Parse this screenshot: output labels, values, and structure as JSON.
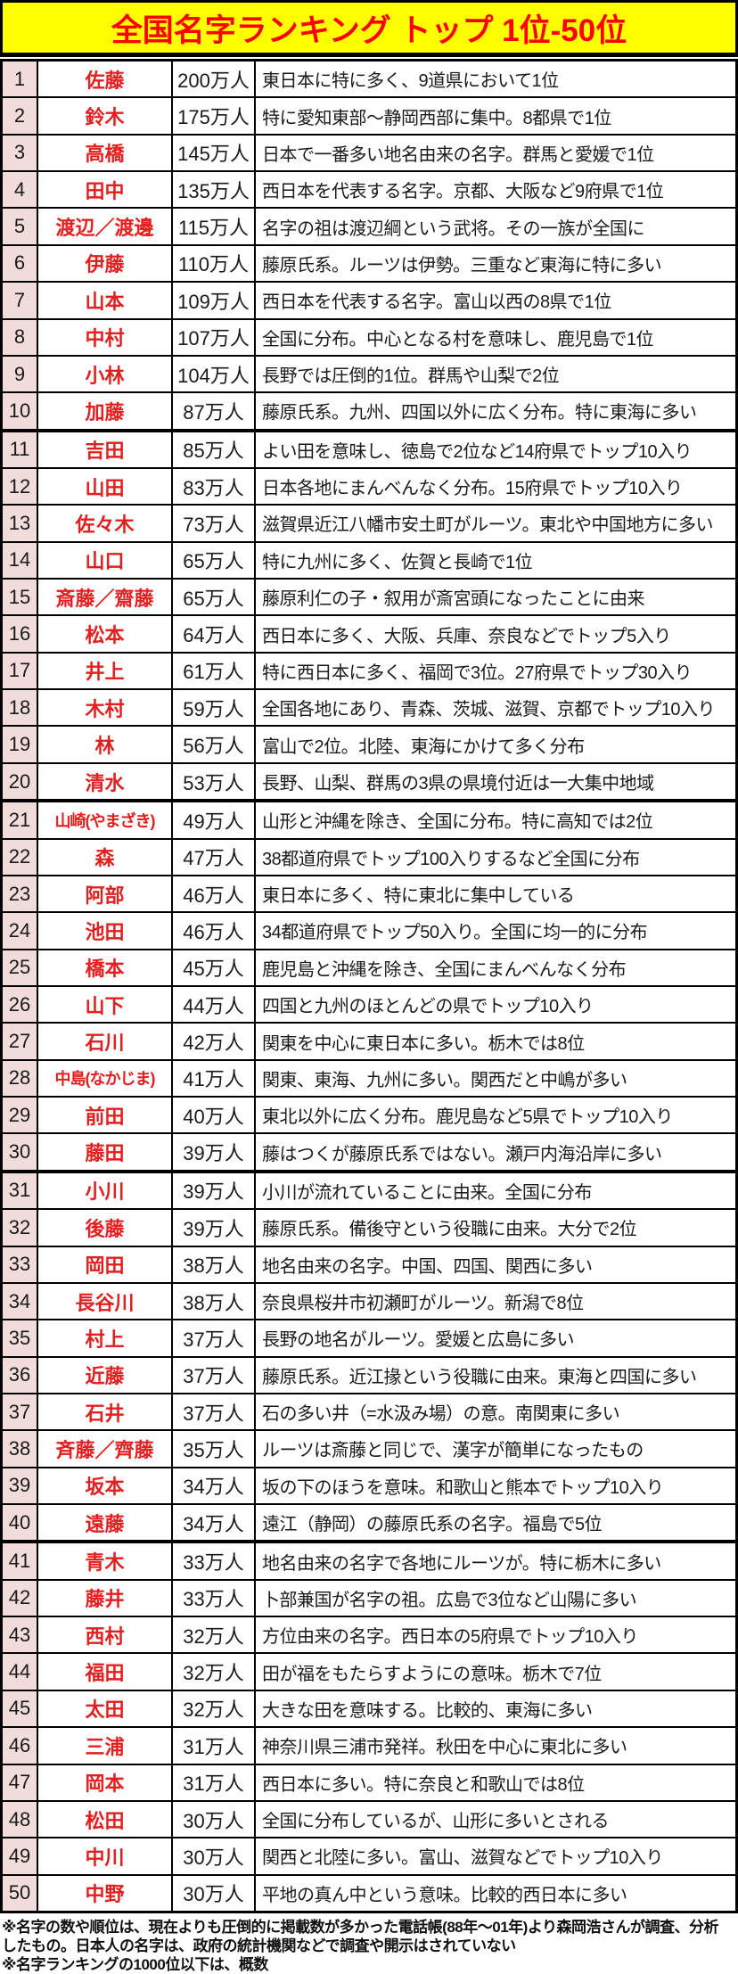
{
  "header": {
    "title": "全国名字ランキング トップ 1位-50位"
  },
  "colors": {
    "header_bg": "#ffff00",
    "header_text": "#ff0000",
    "rank_column_bg": "#f2dcdb",
    "surname_text": "#e31f1f",
    "border": "#000000"
  },
  "chart_data": {
    "type": "table",
    "title": "全国名字ランキング トップ 1位-50位",
    "columns": [
      "rank",
      "surname",
      "population",
      "description"
    ],
    "rows": [
      [
        1,
        "佐藤",
        "200万人",
        "東日本に特に多く、9道県において1位"
      ],
      [
        2,
        "鈴木",
        "175万人",
        "特に愛知東部～静岡西部に集中。8都県で1位"
      ],
      [
        3,
        "高橋",
        "145万人",
        "日本で一番多い地名由来の名字。群馬と愛媛で1位"
      ],
      [
        4,
        "田中",
        "135万人",
        "西日本を代表する名字。京都、大阪など9府県で1位"
      ],
      [
        5,
        "渡辺／渡邊",
        "115万人",
        "名字の祖は渡辺綱という武将。その一族が全国に"
      ],
      [
        6,
        "伊藤",
        "110万人",
        "藤原氏系。ルーツは伊勢。三重など東海に特に多い"
      ],
      [
        7,
        "山本",
        "109万人",
        "西日本を代表する名字。富山以西の8県で1位"
      ],
      [
        8,
        "中村",
        "107万人",
        "全国に分布。中心となる村を意味し、鹿児島で1位"
      ],
      [
        9,
        "小林",
        "104万人",
        "長野では圧倒的1位。群馬や山梨で2位"
      ],
      [
        10,
        "加藤",
        "87万人",
        "藤原氏系。九州、四国以外に広く分布。特に東海に多い"
      ],
      [
        11,
        "吉田",
        "85万人",
        "よい田を意味し、徳島で2位など14府県でトップ10入り"
      ],
      [
        12,
        "山田",
        "83万人",
        "日本各地にまんべんなく分布。15府県でトップ10入り"
      ],
      [
        13,
        "佐々木",
        "73万人",
        "滋賀県近江八幡市安土町がルーツ。東北や中国地方に多い"
      ],
      [
        14,
        "山口",
        "65万人",
        "特に九州に多く、佐賀と長崎で1位"
      ],
      [
        15,
        "斎藤／齋藤",
        "65万人",
        "藤原利仁の子・叙用が斎宮頭になったことに由来"
      ],
      [
        16,
        "松本",
        "64万人",
        "西日本に多く、大阪、兵庫、奈良などでトップ5入り"
      ],
      [
        17,
        "井上",
        "61万人",
        "特に西日本に多く、福岡で3位。27府県でトップ30入り"
      ],
      [
        18,
        "木村",
        "59万人",
        "全国各地にあり、青森、茨城、滋賀、京都でトップ10入り"
      ],
      [
        19,
        "林",
        "56万人",
        "富山で2位。北陸、東海にかけて多く分布"
      ],
      [
        20,
        "清水",
        "53万人",
        "長野、山梨、群馬の3県の県境付近は一大集中地域"
      ],
      [
        21,
        "山崎(やまざき)",
        "49万人",
        "山形と沖縄を除き、全国に分布。特に高知では2位"
      ],
      [
        22,
        "森",
        "47万人",
        "38都道府県でトップ100入りするなど全国に分布"
      ],
      [
        23,
        "阿部",
        "46万人",
        "東日本に多く、特に東北に集中している"
      ],
      [
        24,
        "池田",
        "46万人",
        "34都道府県でトップ50入り。全国に均一的に分布"
      ],
      [
        25,
        "橋本",
        "45万人",
        "鹿児島と沖縄を除き、全国にまんべんなく分布"
      ],
      [
        26,
        "山下",
        "44万人",
        "四国と九州のほとんどの県でトップ10入り"
      ],
      [
        27,
        "石川",
        "42万人",
        "関東を中心に東日本に多い。栃木では8位"
      ],
      [
        28,
        "中島(なかじま)",
        "41万人",
        "関東、東海、九州に多い。関西だと中嶋が多い"
      ],
      [
        29,
        "前田",
        "40万人",
        "東北以外に広く分布。鹿児島など5県でトップ10入り"
      ],
      [
        30,
        "藤田",
        "39万人",
        "藤はつくが藤原氏系ではない。瀬戸内海沿岸に多い"
      ],
      [
        31,
        "小川",
        "39万人",
        "小川が流れていることに由来。全国に分布"
      ],
      [
        32,
        "後藤",
        "39万人",
        "藤原氏系。備後守という役職に由来。大分で2位"
      ],
      [
        33,
        "岡田",
        "38万人",
        "地名由来の名字。中国、四国、関西に多い"
      ],
      [
        34,
        "長谷川",
        "38万人",
        "奈良県桜井市初瀬町がルーツ。新潟で8位"
      ],
      [
        35,
        "村上",
        "37万人",
        "長野の地名がルーツ。愛媛と広島に多い"
      ],
      [
        36,
        "近藤",
        "37万人",
        "藤原氏系。近江掾という役職に由来。東海と四国に多い"
      ],
      [
        37,
        "石井",
        "37万人",
        "石の多い井（=水汲み場）の意。南関東に多い"
      ],
      [
        38,
        "斉藤／齊藤",
        "35万人",
        "ルーツは斎藤と同じで、漢字が簡単になったもの"
      ],
      [
        39,
        "坂本",
        "34万人",
        "坂の下のほうを意味。和歌山と熊本でトップ10入り"
      ],
      [
        40,
        "遠藤",
        "34万人",
        "遠江（静岡）の藤原氏系の名字。福島で5位"
      ],
      [
        41,
        "青木",
        "33万人",
        "地名由来の名字で各地にルーツが。特に栃木に多い"
      ],
      [
        42,
        "藤井",
        "33万人",
        "卜部兼国が名字の祖。広島で3位など山陽に多い"
      ],
      [
        43,
        "西村",
        "32万人",
        "方位由来の名字。西日本の5府県でトップ10入り"
      ],
      [
        44,
        "福田",
        "32万人",
        "田が福をもたらすようにの意味。栃木で7位"
      ],
      [
        45,
        "太田",
        "32万人",
        "大きな田を意味する。比較的、東海に多い"
      ],
      [
        46,
        "三浦",
        "31万人",
        "神奈川県三浦市発祥。秋田を中心に東北に多い"
      ],
      [
        47,
        "岡本",
        "31万人",
        "西日本に多い。特に奈良と和歌山では8位"
      ],
      [
        48,
        "松田",
        "30万人",
        "全国に分布しているが、山形に多いとされる"
      ],
      [
        49,
        "中川",
        "30万人",
        "関西と北陸に多い。富山、滋賀などでトップ10入り"
      ],
      [
        50,
        "中野",
        "30万人",
        "平地の真ん中という意味。比較的西日本に多い"
      ]
    ]
  },
  "footer": {
    "notes": [
      "※名字の数や順位は、現在よりも圧倒的に掲載数が多かった電話帳(88年～01年)より森岡浩さんが調査、分析したもの。日本人の名字は、政府の統計機関などで調査や開示はされていない",
      "※名字ランキングの1000位以下は、概数"
    ]
  }
}
